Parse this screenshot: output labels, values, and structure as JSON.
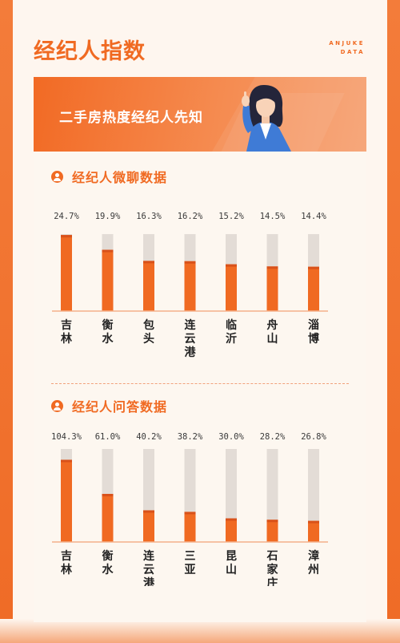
{
  "header": {
    "title": "经纪人指数",
    "brand_line1": "ANJUKE",
    "brand_line2": "DATA"
  },
  "banner": {
    "title": "二手房热度经纪人先知"
  },
  "sections": [
    {
      "title": "经纪人微聊数据"
    },
    {
      "title": "经纪人问答数据"
    }
  ],
  "colors": {
    "accent": "#f06a22",
    "bar_fill": "#f06a22",
    "bar_cap": "#d9521a",
    "bar_track": "#e3dcd6"
  },
  "chart_data": [
    {
      "type": "bar",
      "title": "经纪人微聊数据",
      "categories": [
        "吉林",
        "衡水",
        "包头",
        "连云港",
        "临沂",
        "舟山",
        "淄博"
      ],
      "values": [
        24.7,
        19.9,
        16.3,
        16.2,
        15.2,
        14.5,
        14.4
      ],
      "value_labels": [
        "24.7%",
        "19.9%",
        "16.3%",
        "16.2%",
        "15.2%",
        "14.5%",
        "14.4%"
      ],
      "unit": "%",
      "ylim": [
        0,
        25
      ]
    },
    {
      "type": "bar",
      "title": "经纪人问答数据",
      "categories": [
        "吉林",
        "衡水",
        "连云港",
        "三亚",
        "昆山",
        "石家庄",
        "漳州"
      ],
      "values": [
        104.3,
        61.0,
        40.2,
        38.2,
        30.0,
        28.2,
        26.8
      ],
      "value_labels": [
        "104.3%",
        "61.0%",
        "40.2%",
        "38.2%",
        "30.0%",
        "28.2%",
        "26.8%"
      ],
      "unit": "%",
      "ylim": [
        0,
        118
      ]
    }
  ]
}
